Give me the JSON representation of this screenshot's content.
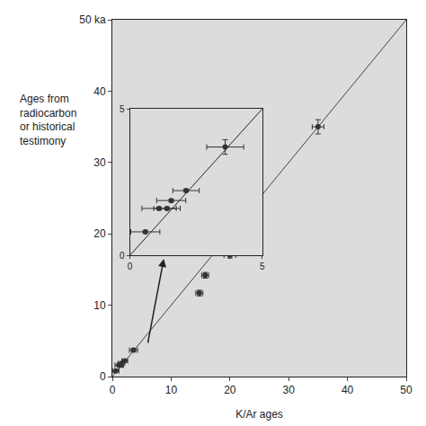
{
  "chart_data": [
    {
      "type": "scatter",
      "x_label": "K/Ar ages",
      "y_label": "Ages from\nradiocarbon\nor historical\ntestimony",
      "x": [
        0.58,
        1.1,
        1.4,
        1.56,
        2.12,
        3.6,
        14.8,
        15.8,
        20,
        35
      ],
      "values": [
        0.8,
        1.6,
        1.6,
        1.87,
        2.21,
        3.7,
        11.7,
        14.2,
        17,
        35
      ],
      "x_error": [
        0.55,
        0.65,
        0.5,
        0.55,
        0.5,
        0.7,
        0.6,
        0.6,
        1,
        1
      ],
      "y_error": [
        0.05,
        0.05,
        0.05,
        0.05,
        0.05,
        0.25,
        0.4,
        0.4,
        0.4,
        1
      ],
      "color": "#333333",
      "marker": "circle",
      "xlim": [
        0,
        50
      ],
      "ylim": [
        0,
        50
      ],
      "xticks": [
        0,
        10,
        20,
        30,
        40,
        50
      ],
      "yticks": [
        0,
        10,
        20,
        30,
        40,
        {
          "value": 50,
          "label": "50 ka"
        }
      ],
      "grid": false
    },
    {
      "type": "scatter",
      "x": [
        0.58,
        1.1,
        1.4,
        1.56,
        2.12,
        3.6
      ],
      "values": [
        0.8,
        1.6,
        1.6,
        1.87,
        2.21,
        3.7
      ],
      "x_error": [
        0.55,
        0.65,
        0.5,
        0.55,
        0.5,
        0.7
      ],
      "y_error": [
        0.05,
        0.05,
        0.05,
        0.05,
        0.05,
        0.25
      ],
      "color": "#333333",
      "marker": "circle",
      "xlim": [
        0,
        5
      ],
      "ylim": [
        0,
        5
      ],
      "xticks": [
        0,
        5
      ],
      "yticks": [
        0,
        5
      ],
      "grid": false
    }
  ]
}
